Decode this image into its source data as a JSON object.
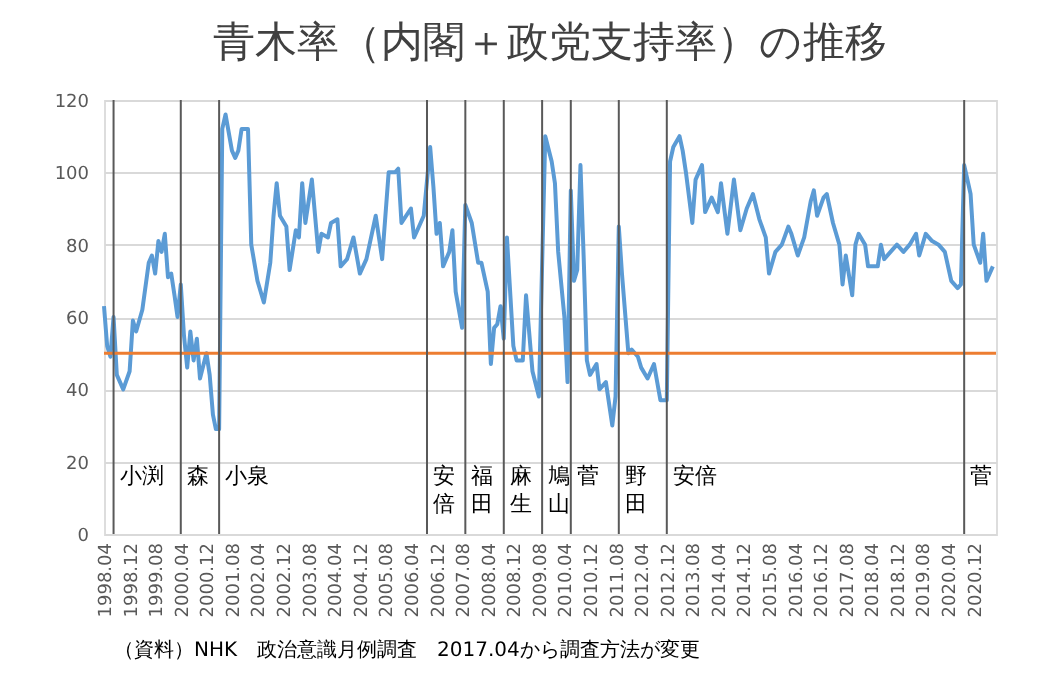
{
  "chart_data": {
    "type": "line",
    "title": "青木率（内閣＋政党支持率）の推移",
    "annotations": [
      "（資料）NHK　政治意識月例調査　2017.04から調査方法が変更"
    ],
    "x": [
      "1998-04",
      "1998-05",
      "1998-06",
      "1998-07",
      "1998-08",
      "1998-10",
      "1998-12",
      "1999-01",
      "1999-02",
      "1999-04",
      "1999-06",
      "1999-07",
      "1999-08",
      "1999-09",
      "1999-10",
      "1999-11",
      "1999-12",
      "2000-01",
      "2000-02",
      "2000-03",
      "2000-04",
      "2000-05",
      "2000-06",
      "2000-07",
      "2000-08",
      "2000-09",
      "2000-10",
      "2000-12",
      "2001-01",
      "2001-02",
      "2001-03",
      "2001-04",
      "2001-05",
      "2001-06",
      "2001-08",
      "2001-09",
      "2001-10",
      "2001-11",
      "2002-01",
      "2002-02",
      "2002-04",
      "2002-06",
      "2002-08",
      "2002-09",
      "2002-10",
      "2002-11",
      "2003-01",
      "2003-02",
      "2003-04",
      "2003-05",
      "2003-06",
      "2003-07",
      "2003-09",
      "2003-11",
      "2003-12",
      "2004-02",
      "2004-03",
      "2004-05",
      "2004-06",
      "2004-08",
      "2004-10",
      "2004-12",
      "2005-02",
      "2005-05",
      "2005-07",
      "2005-09",
      "2005-11",
      "2005-12",
      "2006-01",
      "2006-04",
      "2006-05",
      "2006-06",
      "2006-08",
      "2006-10",
      "2006-11",
      "2006-12",
      "2007-01",
      "2007-02",
      "2007-04",
      "2007-05",
      "2007-06",
      "2007-08",
      "2007-09",
      "2007-11",
      "2008-01",
      "2008-02",
      "2008-04",
      "2008-05",
      "2008-06",
      "2008-07",
      "2008-08",
      "2008-09",
      "2008-10",
      "2008-12",
      "2009-01",
      "2009-03",
      "2009-04",
      "2009-06",
      "2009-08",
      "2009-10",
      "2009-12",
      "2010-01",
      "2010-02",
      "2010-04",
      "2010-05",
      "2010-06",
      "2010-07",
      "2010-08",
      "2010-09",
      "2010-10",
      "2010-11",
      "2010-12",
      "2011-02",
      "2011-03",
      "2011-05",
      "2011-07",
      "2011-08",
      "2011-09",
      "2011-10",
      "2011-12",
      "2012-01",
      "2012-03",
      "2012-04",
      "2012-06",
      "2012-08",
      "2012-10",
      "2012-12",
      "2013-01",
      "2013-02",
      "2013-04",
      "2013-05",
      "2013-06",
      "2013-08",
      "2013-09",
      "2013-11",
      "2013-12",
      "2014-02",
      "2014-04",
      "2014-05",
      "2014-07",
      "2014-09",
      "2014-11",
      "2015-01",
      "2015-03",
      "2015-05",
      "2015-07",
      "2015-08",
      "2015-10",
      "2015-12",
      "2016-02",
      "2016-03",
      "2016-05",
      "2016-07",
      "2016-09",
      "2016-10",
      "2016-11",
      "2017-01",
      "2017-02",
      "2017-04",
      "2017-06",
      "2017-07",
      "2017-08",
      "2017-10",
      "2017-11",
      "2017-12",
      "2018-02",
      "2018-03",
      "2018-06",
      "2018-07",
      "2018-08",
      "2018-10",
      "2018-12",
      "2019-02",
      "2019-04",
      "2019-06",
      "2019-07",
      "2019-09",
      "2019-11",
      "2020-01",
      "2020-03",
      "2020-05",
      "2020-07",
      "2020-08",
      "2020-09",
      "2020-11",
      "2020-12",
      "2021-02",
      "2021-03",
      "2021-04",
      "2021-06"
    ],
    "series": [
      {
        "color": "#5b9bd5",
        "values": [
          63,
          52,
          49,
          60,
          44,
          40,
          45,
          59,
          56,
          62,
          75,
          77,
          72,
          81,
          78,
          83,
          71,
          72,
          66,
          60,
          69,
          55,
          46,
          56,
          48,
          54,
          43,
          50,
          44,
          33,
          29,
          29,
          112,
          116,
          106,
          104,
          106,
          112,
          112,
          80,
          70,
          64,
          75,
          88,
          97,
          88,
          85,
          73,
          84,
          82,
          97,
          86,
          98,
          78,
          83,
          82,
          86,
          87,
          74,
          76,
          82,
          72,
          76,
          88,
          76,
          100,
          100,
          101,
          86,
          90,
          82,
          84,
          88,
          107,
          96,
          83,
          86,
          74,
          78,
          84,
          67,
          57,
          91,
          86,
          75,
          75,
          67,
          47,
          57,
          58,
          63,
          54,
          82,
          52,
          48,
          48,
          66,
          45,
          38,
          110,
          103,
          97,
          78,
          60,
          42,
          95,
          70,
          73,
          102,
          77,
          48,
          44,
          47,
          40,
          42,
          30,
          38,
          85,
          72,
          50,
          51,
          49,
          46,
          43,
          47,
          37,
          37,
          103,
          107,
          110,
          106,
          100,
          86,
          98,
          102,
          89,
          93,
          89,
          97,
          83,
          98,
          84,
          90,
          94,
          87,
          82,
          72,
          78,
          80,
          85,
          83,
          77,
          82,
          92,
          95,
          88,
          93,
          94,
          86,
          80,
          69,
          77,
          66,
          80,
          83,
          80,
          74,
          74,
          80,
          76,
          78,
          80,
          78,
          80,
          83,
          77,
          83,
          81,
          80,
          78,
          70,
          68,
          69,
          102,
          94,
          80,
          75,
          83,
          70,
          74
        ]
      }
    ],
    "xlim": [
      "1998-04",
      "2021-07"
    ],
    "xticks": [
      {
        "value": "1998-04",
        "label": "1998.04"
      },
      {
        "value": "1998-12",
        "label": "1998.12"
      },
      {
        "value": "1999-08",
        "label": "1999.08"
      },
      {
        "value": "2000-04",
        "label": "2000.04"
      },
      {
        "value": "2000-12",
        "label": "2000.12"
      },
      {
        "value": "2001-08",
        "label": "2001.08"
      },
      {
        "value": "2002-04",
        "label": "2002.04"
      },
      {
        "value": "2002-12",
        "label": "2002.12"
      },
      {
        "value": "2003-08",
        "label": "2003.08"
      },
      {
        "value": "2004-04",
        "label": "2004.04"
      },
      {
        "value": "2004-12",
        "label": "2004.12"
      },
      {
        "value": "2005-08",
        "label": "2005.08"
      },
      {
        "value": "2006-04",
        "label": "2006.04"
      },
      {
        "value": "2006-12",
        "label": "2006.12"
      },
      {
        "value": "2007-08",
        "label": "2007.08"
      },
      {
        "value": "2008-04",
        "label": "2008.04"
      },
      {
        "value": "2008-12",
        "label": "2008.12"
      },
      {
        "value": "2009-08",
        "label": "2009.08"
      },
      {
        "value": "2010-04",
        "label": "2010.04"
      },
      {
        "value": "2010-12",
        "label": "2010.12"
      },
      {
        "value": "2011-08",
        "label": "2011.08"
      },
      {
        "value": "2012-04",
        "label": "2012.04"
      },
      {
        "value": "2012-12",
        "label": "2012.12"
      },
      {
        "value": "2013-08",
        "label": "2013.08"
      },
      {
        "value": "2014-04",
        "label": "2014.04"
      },
      {
        "value": "2014-12",
        "label": "2014.12"
      },
      {
        "value": "2015-08",
        "label": "2015.08"
      },
      {
        "value": "2016-04",
        "label": "2016.04"
      },
      {
        "value": "2016-12",
        "label": "2016.12"
      },
      {
        "value": "2017-08",
        "label": "2017.08"
      },
      {
        "value": "2018-04",
        "label": "2018.04"
      },
      {
        "value": "2018-12",
        "label": "2018.12"
      },
      {
        "value": "2019-08",
        "label": "2019.08"
      },
      {
        "value": "2020-04",
        "label": "2020.04"
      },
      {
        "value": "2020-12",
        "label": "2020.12"
      }
    ],
    "ylim": [
      0,
      120
    ],
    "yticks": [
      0,
      20,
      40,
      60,
      80,
      100,
      120
    ],
    "grid": "y",
    "marker": "none",
    "line_style": "solid",
    "ref_lines": [
      {
        "axis": "y",
        "value": 50,
        "color": "#ed7d31"
      },
      {
        "axis": "x",
        "value": "1998-07",
        "label": "小渕",
        "color": "#595959"
      },
      {
        "axis": "x",
        "value": "2000-04",
        "label": "森",
        "color": "#595959"
      },
      {
        "axis": "x",
        "value": "2001-04",
        "label": "小泉",
        "color": "#595959"
      },
      {
        "axis": "x",
        "value": "2006-09",
        "label": "安倍",
        "color": "#595959"
      },
      {
        "axis": "x",
        "value": "2007-09",
        "label": "福田",
        "color": "#595959"
      },
      {
        "axis": "x",
        "value": "2008-09",
        "label": "麻生",
        "color": "#595959"
      },
      {
        "axis": "x",
        "value": "2009-09",
        "label": "鳩山",
        "color": "#595959"
      },
      {
        "axis": "x",
        "value": "2010-06",
        "label": "菅",
        "color": "#595959"
      },
      {
        "axis": "x",
        "value": "2011-09",
        "label": "野田",
        "color": "#595959"
      },
      {
        "axis": "x",
        "value": "2012-12",
        "label": "安倍",
        "color": "#595959"
      },
      {
        "axis": "x",
        "value": "2020-09",
        "label": "菅",
        "color": "#595959"
      }
    ]
  }
}
